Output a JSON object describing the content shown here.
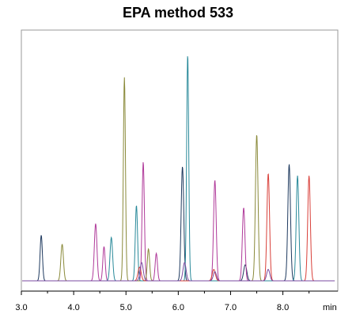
{
  "chart_data": {
    "type": "line",
    "title": "EPA method 533",
    "xlabel": "min",
    "ylabel": "",
    "xlim": [
      3.0,
      9.05
    ],
    "ylim": [
      0,
      100
    ],
    "xticks": [
      "3.0",
      "4.0",
      "5.0",
      "6.0",
      "7.0",
      "8.0"
    ],
    "tick_values": [
      3.0,
      4.0,
      5.0,
      6.0,
      7.0,
      8.0
    ],
    "grid": false,
    "series": [
      {
        "color": "#1f3a5f",
        "peaks": [
          [
            3.38,
            20,
            0.022
          ],
          [
            6.08,
            50,
            0.025
          ],
          [
            7.28,
            7,
            0.03
          ],
          [
            8.12,
            46,
            0.025
          ],
          [
            8.12,
            5,
            0.03
          ]
        ]
      },
      {
        "color": "#b03a9a",
        "peaks": [
          [
            4.42,
            25,
            0.025
          ],
          [
            4.58,
            15,
            0.022
          ],
          [
            5.33,
            52,
            0.022
          ],
          [
            5.58,
            12,
            0.022
          ],
          [
            6.7,
            44,
            0.025
          ],
          [
            7.25,
            32,
            0.025
          ]
        ]
      },
      {
        "color": "#8a8a3a",
        "peaks": [
          [
            3.78,
            16,
            0.025
          ],
          [
            4.97,
            89,
            0.02
          ],
          [
            5.43,
            14,
            0.022
          ],
          [
            7.5,
            64,
            0.025
          ]
        ]
      },
      {
        "color": "#2a8a9a",
        "peaks": [
          [
            4.72,
            19,
            0.025
          ],
          [
            5.2,
            33,
            0.022
          ],
          [
            6.18,
            99,
            0.02
          ],
          [
            8.28,
            46,
            0.025
          ]
        ]
      },
      {
        "color": "#d9403a",
        "peaks": [
          [
            5.26,
            6,
            0.03
          ],
          [
            6.68,
            5,
            0.03
          ],
          [
            7.72,
            47,
            0.025
          ],
          [
            8.5,
            46,
            0.025
          ]
        ]
      },
      {
        "color": "#7a4aa0",
        "peaks": [
          [
            5.3,
            8,
            0.03
          ],
          [
            6.12,
            8,
            0.03
          ],
          [
            6.7,
            4,
            0.03
          ],
          [
            7.72,
            5,
            0.03
          ]
        ]
      }
    ]
  }
}
